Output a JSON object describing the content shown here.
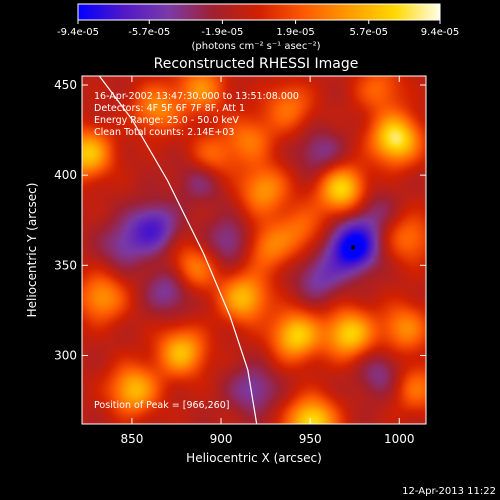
{
  "chart_data": {
    "type": "heatmap",
    "title": "Reconstructed RHESSI Image",
    "xlabel": "Heliocentric X (arcsec)",
    "ylabel": "Heliocentric Y (arcsec)",
    "xlim": [
      822,
      1015
    ],
    "ylim": [
      262,
      455
    ],
    "x_ticks": [
      850,
      900,
      950,
      1000
    ],
    "y_ticks": [
      300,
      350,
      400,
      450
    ],
    "colorbar": {
      "range": [
        -9.4e-05,
        9.4e-05
      ],
      "tick_values": [
        -9.4e-05,
        -5.7e-05,
        -1.9e-05,
        1.9e-05,
        5.7e-05,
        9.4e-05
      ],
      "tick_labels": [
        "-9.4e-05",
        "-5.7e-05",
        "-1.9e-05",
        "1.9e-05",
        "5.7e-05",
        "9.4e-05"
      ],
      "unit_label": "(photons cm⁻² s⁻¹ asec⁻²)",
      "colormap": [
        "#0000ff",
        "#5018c8",
        "#7a3aa8",
        "#a02030",
        "#d22000",
        "#ff5a00",
        "#ff9b00",
        "#ffd800",
        "#ffffe8"
      ]
    },
    "annotations": [
      "16-Apr-2002 13:47:30.000 to 13:51:08.000",
      "Detectors: 4F 5F 6F 7F 8F, Att 1",
      "Energy Range: 25.0 - 50.0 keV",
      "Clean    Total counts: 2.14E+03"
    ],
    "peak_label": "Position of Peak = [966,260]",
    "limb_points": [
      [
        831,
        456
      ],
      [
        850,
        431
      ],
      [
        870,
        397
      ],
      [
        890,
        357
      ],
      [
        905,
        322
      ],
      [
        915,
        292
      ],
      [
        920,
        262
      ]
    ],
    "blobs": [
      {
        "x": 998,
        "y": 420,
        "v": 1.0
      },
      {
        "x": 968,
        "y": 392,
        "v": 0.9
      },
      {
        "x": 972,
        "y": 312,
        "v": 0.85
      },
      {
        "x": 942,
        "y": 311,
        "v": 0.85
      },
      {
        "x": 913,
        "y": 332,
        "v": 0.75
      },
      {
        "x": 878,
        "y": 302,
        "v": 0.75
      },
      {
        "x": 884,
        "y": 348,
        "v": 0.55
      },
      {
        "x": 825,
        "y": 412,
        "v": 0.8
      },
      {
        "x": 833,
        "y": 332,
        "v": 0.6
      },
      {
        "x": 851,
        "y": 281,
        "v": 0.75
      },
      {
        "x": 951,
        "y": 263,
        "v": 0.95
      },
      {
        "x": 1003,
        "y": 315,
        "v": 0.55
      },
      {
        "x": 864,
        "y": 437,
        "v": 0.55
      },
      {
        "x": 889,
        "y": 448,
        "v": 0.55
      },
      {
        "x": 924,
        "y": 392,
        "v": 0.6
      },
      {
        "x": 938,
        "y": 438,
        "v": 0.45
      },
      {
        "x": 989,
        "y": 448,
        "v": 0.4
      },
      {
        "x": 894,
        "y": 408,
        "v": 0.6
      },
      {
        "x": 926,
        "y": 360,
        "v": 0.5
      },
      {
        "x": 1006,
        "y": 365,
        "v": 0.45
      },
      {
        "x": 945,
        "y": 370,
        "v": 0.4
      },
      {
        "x": 1009,
        "y": 282,
        "v": 0.45
      },
      {
        "x": 916,
        "y": 420,
        "v": 0.45
      },
      {
        "x": 974,
        "y": 360,
        "v": -1.0
      },
      {
        "x": 862,
        "y": 371,
        "v": -0.6
      },
      {
        "x": 890,
        "y": 400,
        "v": -0.5
      },
      {
        "x": 872,
        "y": 337,
        "v": -0.45
      },
      {
        "x": 955,
        "y": 343,
        "v": -0.4
      },
      {
        "x": 956,
        "y": 412,
        "v": -0.35
      },
      {
        "x": 918,
        "y": 281,
        "v": -0.4
      },
      {
        "x": 990,
        "y": 290,
        "v": -0.35
      },
      {
        "x": 905,
        "y": 363,
        "v": -0.4
      },
      {
        "x": 845,
        "y": 361,
        "v": -0.35
      },
      {
        "x": 984,
        "y": 380,
        "v": -0.3
      }
    ]
  },
  "footer": {
    "timestamp": "12-Apr-2013 11:22"
  }
}
